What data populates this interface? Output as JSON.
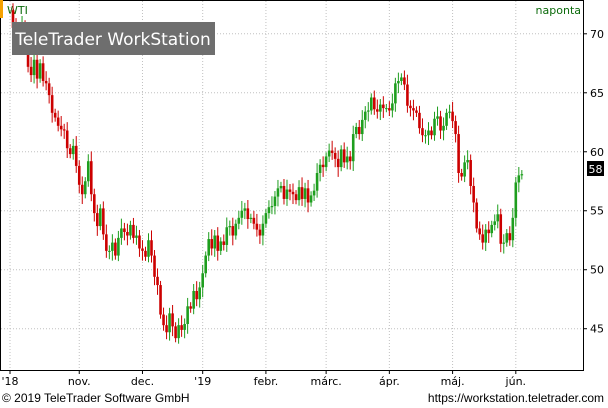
{
  "chart_data": {
    "type": "candlestick",
    "title": "",
    "instrument": "WTI",
    "period": "naponta",
    "watermark": "TeleTrader WorkStation",
    "last_price_label": "58",
    "y_ticks": [
      45,
      50,
      55,
      60,
      65,
      70
    ],
    "ylim": [
      41.5,
      71
    ],
    "x_ticks": [
      {
        "label": "'18",
        "x": 0
      },
      {
        "label": "nov.",
        "x": 23
      },
      {
        "label": "dec.",
        "x": 44
      },
      {
        "label": "'19",
        "x": 64
      },
      {
        "label": "febr.",
        "x": 85
      },
      {
        "label": "márc.",
        "x": 105
      },
      {
        "label": "ápr.",
        "x": 126
      },
      {
        "label": "máj.",
        "x": 147
      },
      {
        "label": "jún.",
        "x": 168
      }
    ],
    "xlim": [
      0,
      186
    ],
    "closes": [
      72,
      70.5,
      69.8,
      69.5,
      70.8,
      69,
      67.2,
      66.5,
      67.8,
      66.2,
      67.5,
      66,
      65.8,
      64.8,
      63.3,
      62.9,
      62.2,
      61.9,
      61.8,
      60.3,
      59.8,
      60.5,
      58.8,
      57.2,
      56.4,
      57.5,
      59.2,
      56.4,
      54.8,
      53.7,
      55.2,
      53,
      51.6,
      51.6,
      52.3,
      51.2,
      52.7,
      53.5,
      53.2,
      52.9,
      53.8,
      52.7,
      52.9,
      51.8,
      51.6,
      51.1,
      52.5,
      51.2,
      49.4,
      48.7,
      46.2,
      45.3,
      44.7,
      46.3,
      45.2,
      44.2,
      45.3,
      44.9,
      45.4,
      46.9,
      46.7,
      48.2,
      47.5,
      48.5,
      49.7,
      51.2,
      52.6,
      51.8,
      52.9,
      51.6,
      52.4,
      52.1,
      53.6,
      53.7,
      52.9,
      53.9,
      54.4,
      55,
      55.2,
      54.3,
      54.4,
      53.9,
      53.4,
      52.9,
      53.9,
      54.8,
      55.3,
      55.4,
      56.2,
      56.9,
      57.1,
      56,
      56.8,
      56.6,
      56.4,
      55.9,
      57,
      56,
      56.9,
      55.7,
      56.3,
      56.7,
      58.2,
      58.9,
      58.7,
      59.6,
      60.1,
      59.9,
      59.4,
      58.7,
      60.2,
      59.1,
      59.6,
      59.2,
      61.5,
      62.1,
      61.5,
      62.7,
      63.4,
      63.5,
      64.6,
      63.6,
      63.4,
      64,
      63.7,
      63.7,
      63.5,
      64.1,
      65.8,
      66,
      66.3,
      65.7,
      63.9,
      63.7,
      63.5,
      63.3,
      62,
      61.4,
      61.4,
      61.8,
      61.4,
      62.8,
      63,
      61.8,
      62.2,
      63.3,
      63.4,
      62.6,
      61.5,
      58.2,
      57.9,
      59.1,
      59.3,
      57.1,
      55.7,
      53.5,
      53,
      52.3,
      53.4,
      53.1,
      53.8,
      54.1,
      54.7,
      52.2,
      52.3,
      53.1,
      52.5,
      54.4,
      57.4,
      58,
      58.1
    ]
  },
  "footer": {
    "copyright": "© 2019 TeleTrader Software GmbH",
    "url": "https://workstation.teletrader.com"
  },
  "colors": {
    "up": "#1e9e1e",
    "down": "#cc0000",
    "accent": "#f5a100",
    "grid": "#c0c0c0",
    "watermark_bg": "#6e6e6e"
  }
}
